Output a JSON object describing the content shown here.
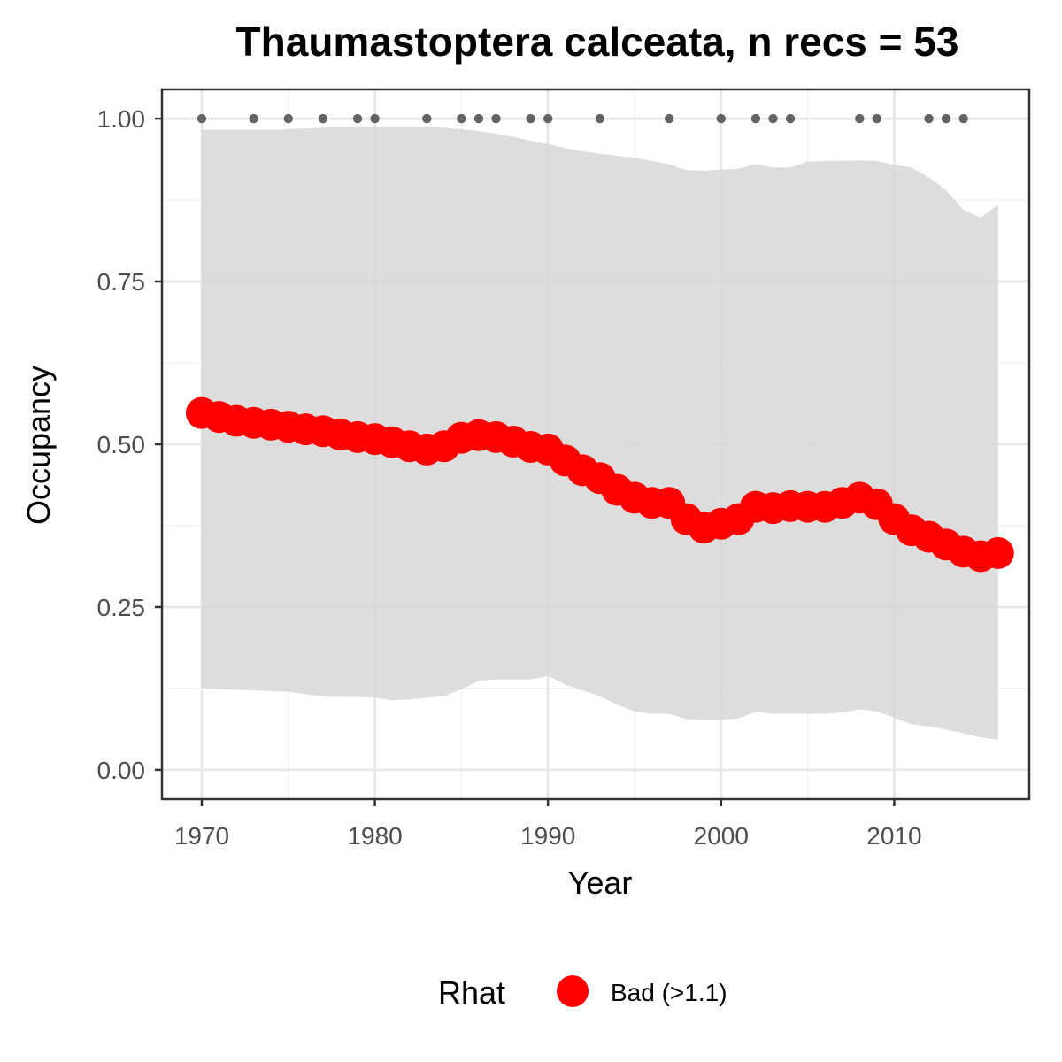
{
  "chart_data": {
    "type": "line",
    "title": "Thaumastoptera calceata, n recs = 53",
    "xlabel": "Year",
    "ylabel": "Occupancy",
    "xlim": [
      1967.7,
      2017.8
    ],
    "ylim": [
      -0.045,
      1.045
    ],
    "x_ticks": [
      1970,
      1980,
      1990,
      2000,
      2010
    ],
    "x_tick_labels": [
      "1970",
      "1980",
      "1990",
      "2000",
      "2010"
    ],
    "y_ticks": [
      0,
      0.25,
      0.5,
      0.75,
      1.0
    ],
    "y_tick_labels": [
      "0.00",
      "0.25",
      "0.50",
      "0.75",
      "1.00"
    ],
    "grid": true,
    "legend": {
      "position": "bottom",
      "title": "Rhat",
      "entries": [
        {
          "label": "Bad (>1.1)",
          "color": "#ff0000"
        }
      ]
    },
    "colors": {
      "line": "#ff0000",
      "ribbon": "#d6d6d6",
      "record_points": "#636363",
      "panel_border": "#333333",
      "grid_major": "#e8e8e8",
      "grid_minor": "#f2f2f2"
    },
    "series": [
      {
        "name": "Bad (>1.1)",
        "x": [
          1970,
          1971,
          1972,
          1973,
          1974,
          1975,
          1976,
          1977,
          1978,
          1979,
          1980,
          1981,
          1982,
          1983,
          1984,
          1985,
          1986,
          1987,
          1988,
          1989,
          1990,
          1991,
          1992,
          1993,
          1994,
          1995,
          1996,
          1997,
          1998,
          1999,
          2000,
          2001,
          2002,
          2003,
          2004,
          2005,
          2006,
          2007,
          2008,
          2009,
          2010,
          2011,
          2012,
          2013,
          2014,
          2015,
          2016
        ],
        "y": [
          0.548,
          0.542,
          0.536,
          0.533,
          0.53,
          0.527,
          0.523,
          0.52,
          0.515,
          0.511,
          0.508,
          0.503,
          0.497,
          0.492,
          0.497,
          0.51,
          0.514,
          0.511,
          0.504,
          0.496,
          0.492,
          0.475,
          0.46,
          0.448,
          0.43,
          0.418,
          0.41,
          0.41,
          0.385,
          0.372,
          0.378,
          0.385,
          0.404,
          0.402,
          0.405,
          0.404,
          0.404,
          0.41,
          0.418,
          0.408,
          0.385,
          0.368,
          0.358,
          0.346,
          0.335,
          0.328,
          0.333
        ]
      }
    ],
    "ribbon": {
      "x": [
        1970,
        1971,
        1972,
        1973,
        1974,
        1975,
        1976,
        1977,
        1978,
        1979,
        1980,
        1981,
        1982,
        1983,
        1984,
        1985,
        1986,
        1987,
        1988,
        1989,
        1990,
        1991,
        1992,
        1993,
        1994,
        1995,
        1996,
        1997,
        1998,
        1999,
        2000,
        2001,
        2002,
        2003,
        2004,
        2005,
        2006,
        2007,
        2008,
        2009,
        2010,
        2011,
        2012,
        2013,
        2014,
        2015,
        2016
      ],
      "upper": [
        0.983,
        0.983,
        0.983,
        0.983,
        0.983,
        0.984,
        0.985,
        0.986,
        0.987,
        0.988,
        0.988,
        0.988,
        0.988,
        0.987,
        0.986,
        0.984,
        0.981,
        0.977,
        0.972,
        0.966,
        0.961,
        0.955,
        0.95,
        0.946,
        0.943,
        0.94,
        0.935,
        0.93,
        0.921,
        0.92,
        0.922,
        0.923,
        0.93,
        0.925,
        0.925,
        0.934,
        0.935,
        0.935,
        0.936,
        0.935,
        0.929,
        0.925,
        0.91,
        0.89,
        0.86,
        0.848,
        0.868
      ],
      "lower": [
        0.126,
        0.124,
        0.123,
        0.122,
        0.121,
        0.12,
        0.116,
        0.113,
        0.112,
        0.112,
        0.111,
        0.107,
        0.108,
        0.111,
        0.113,
        0.124,
        0.137,
        0.139,
        0.139,
        0.139,
        0.144,
        0.131,
        0.122,
        0.113,
        0.1,
        0.09,
        0.086,
        0.086,
        0.078,
        0.077,
        0.077,
        0.079,
        0.089,
        0.086,
        0.086,
        0.086,
        0.086,
        0.088,
        0.093,
        0.09,
        0.08,
        0.07,
        0.067,
        0.062,
        0.056,
        0.05,
        0.046
      ]
    },
    "record_years": [
      1970,
      1973,
      1975,
      1977,
      1979,
      1980,
      1983,
      1985,
      1986,
      1987,
      1989,
      1990,
      1993,
      1997,
      2000,
      2002,
      2003,
      2004,
      2008,
      2009,
      2012,
      2013,
      2014
    ],
    "record_value": 1.0
  }
}
